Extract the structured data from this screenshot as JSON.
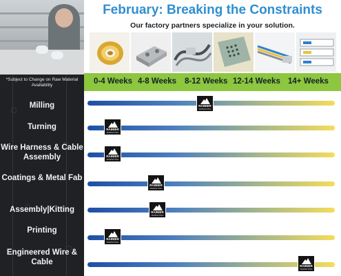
{
  "header": {
    "title": "February: Breaking the Constraints",
    "subtitle": "Our factory partners specialize in your solution."
  },
  "sidebar": {
    "disclaimer": "*Subject to Change on Raw Material Availability"
  },
  "weeks": [
    "0-4 Weeks",
    "4-8 Weeks",
    "8-12 Weeks",
    "12-14 Weeks",
    "14+ Weeks"
  ],
  "rows": [
    {
      "label": "Milling"
    },
    {
      "label": "Turning"
    },
    {
      "label": "Wire Harness & Cable Assembly"
    },
    {
      "label": "Coatings & Metal Fab"
    },
    {
      "label": "Assembly|Kitting"
    },
    {
      "label": "Printing"
    },
    {
      "label": "Engineered Wire & Cable"
    }
  ],
  "logo": {
    "name": "RAINIER",
    "tagline": "MARKETING"
  },
  "colors": {
    "title": "#2f8fd0",
    "weeks_band": "#8dc63f",
    "bar_start": "#1f4fa6",
    "bar_end": "#f4dc5c",
    "left_panel": "#1f2124"
  },
  "icons": [
    "rainier-mountain-logo-icon"
  ]
}
